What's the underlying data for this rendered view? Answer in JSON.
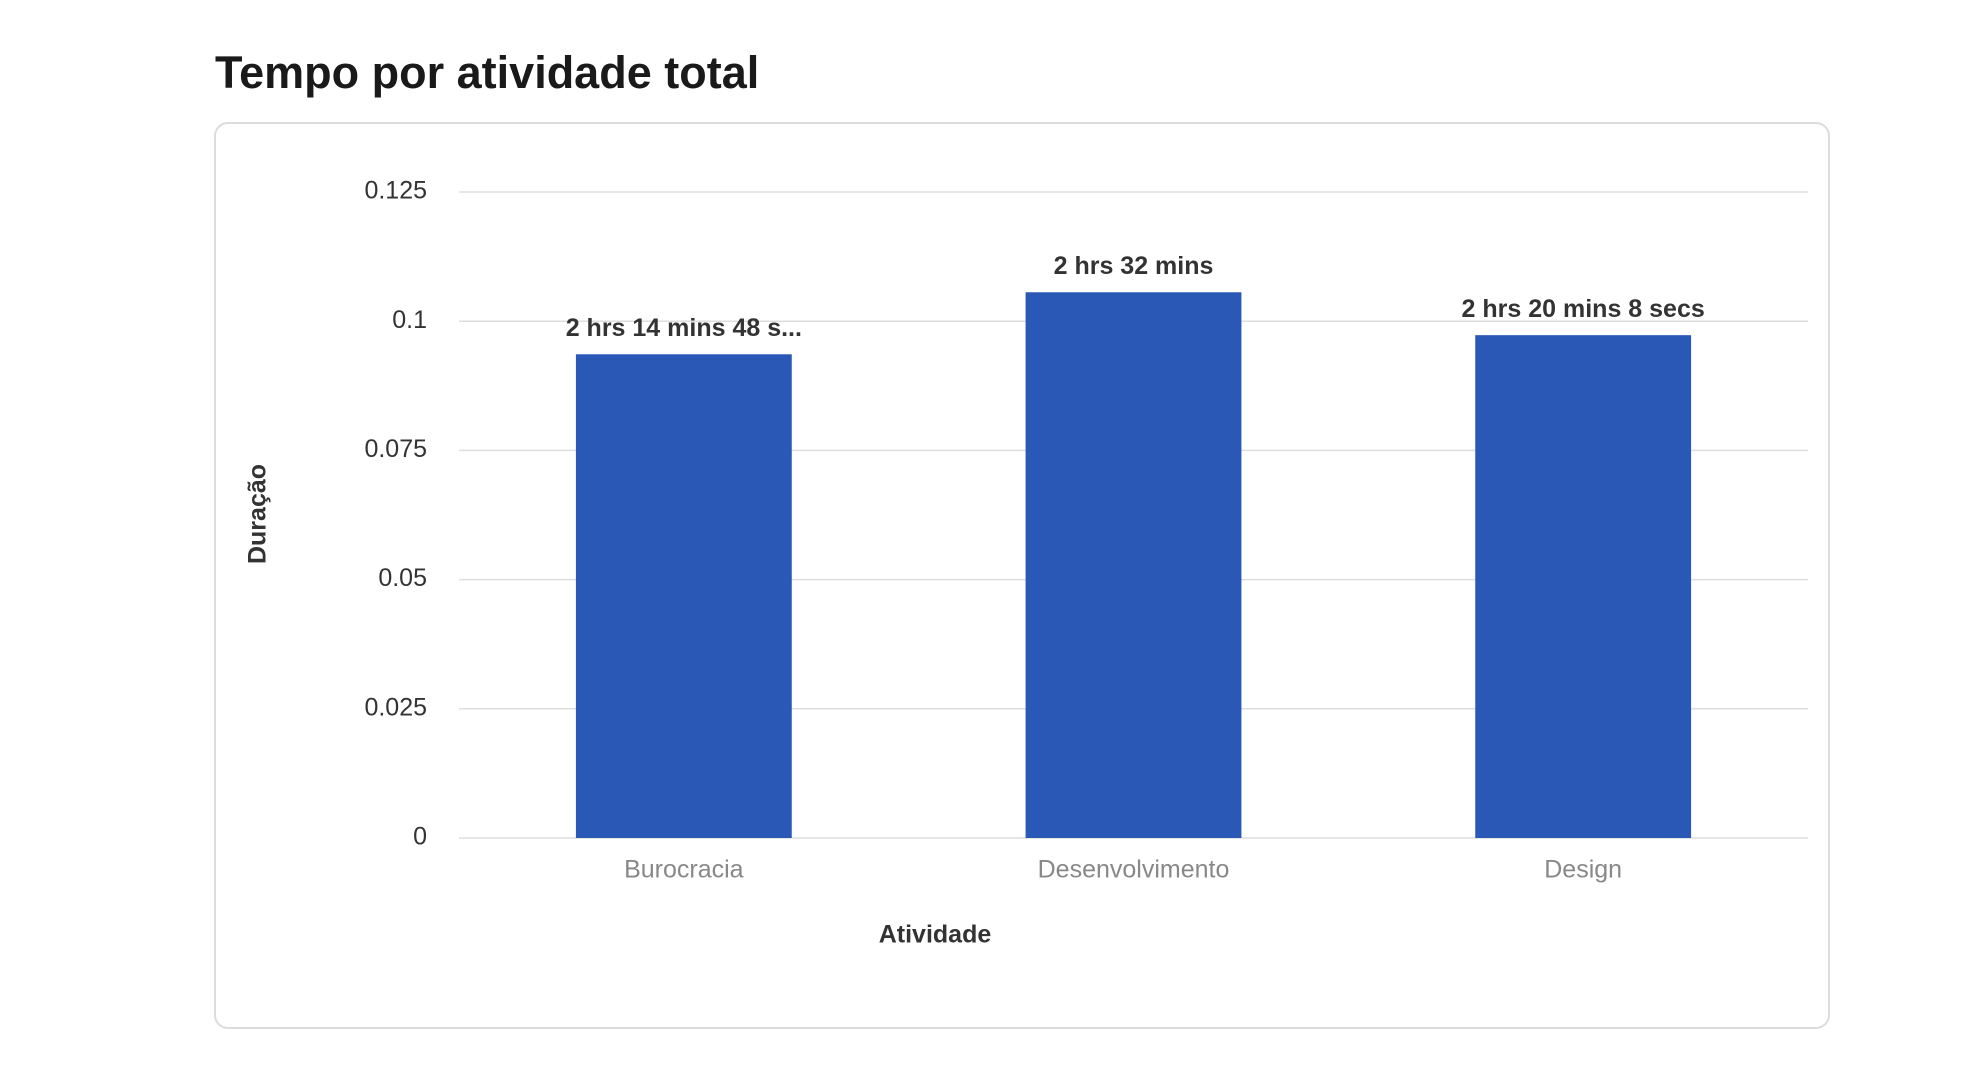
{
  "chart_data": {
    "type": "bar",
    "title": "Tempo por atividade total",
    "x_label": "Atividade",
    "y_label": "Duração",
    "categories": [
      "Burocracia",
      "Desenvolvimento",
      "Design"
    ],
    "values": [
      0.0936,
      0.1056,
      0.0973
    ],
    "value_labels": [
      "2 hrs 14 mins 48 s...",
      "2 hrs 32 mins",
      "2 hrs 20 mins 8 secs"
    ],
    "color": "#2a58b6",
    "ylim": [
      0,
      0.125
    ],
    "yticks": [
      0,
      0.025,
      0.05,
      0.075,
      0.1,
      0.125
    ],
    "grid": true
  }
}
